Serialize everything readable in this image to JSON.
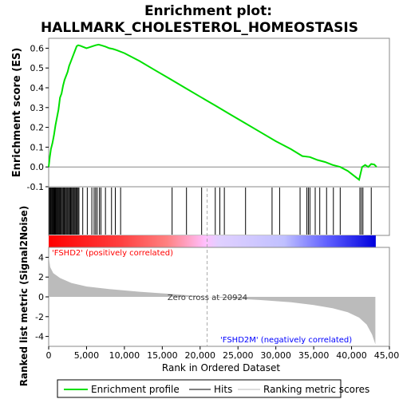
{
  "chart_data": {
    "type": "line",
    "title": "Enrichment plot:\nHALLMARK_CHOLESTEROL_HOMEOSTASIS",
    "title_lines": [
      "Enrichment plot:",
      "HALLMARK_CHOLESTEROL_HOMEOSTASIS"
    ],
    "es_panel": {
      "ylabel": "Enrichment score (ES)",
      "ylim": [
        -0.1,
        0.65
      ],
      "yticks": [
        -0.1,
        0.0,
        0.1,
        0.2,
        0.3,
        0.4,
        0.5,
        0.6
      ],
      "ytick_labels": [
        "-0.1",
        "0.0",
        "0.1",
        "0.2",
        "0.3",
        "0.4",
        "0.5",
        "0.6"
      ],
      "line_color": "#00e000",
      "points": [
        [
          0,
          0.0
        ],
        [
          150,
          0.05
        ],
        [
          300,
          0.09
        ],
        [
          500,
          0.12
        ],
        [
          700,
          0.16
        ],
        [
          900,
          0.21
        ],
        [
          1100,
          0.25
        ],
        [
          1300,
          0.29
        ],
        [
          1500,
          0.35
        ],
        [
          1700,
          0.37
        ],
        [
          1900,
          0.41
        ],
        [
          2100,
          0.44
        ],
        [
          2300,
          0.46
        ],
        [
          2500,
          0.48
        ],
        [
          2700,
          0.51
        ],
        [
          2900,
          0.53
        ],
        [
          3100,
          0.55
        ],
        [
          3300,
          0.57
        ],
        [
          3500,
          0.59
        ],
        [
          3700,
          0.61
        ],
        [
          3900,
          0.615
        ],
        [
          4200,
          0.612
        ],
        [
          4600,
          0.606
        ],
        [
          5000,
          0.6
        ],
        [
          5400,
          0.605
        ],
        [
          5800,
          0.61
        ],
        [
          6200,
          0.615
        ],
        [
          6600,
          0.618
        ],
        [
          7000,
          0.614
        ],
        [
          7500,
          0.608
        ],
        [
          8000,
          0.6
        ],
        [
          8500,
          0.596
        ],
        [
          9000,
          0.59
        ],
        [
          10000,
          0.575
        ],
        [
          12000,
          0.535
        ],
        [
          14000,
          0.49
        ],
        [
          16000,
          0.445
        ],
        [
          18000,
          0.4
        ],
        [
          20000,
          0.355
        ],
        [
          22000,
          0.31
        ],
        [
          24000,
          0.265
        ],
        [
          26000,
          0.22
        ],
        [
          28000,
          0.175
        ],
        [
          30000,
          0.13
        ],
        [
          32000,
          0.09
        ],
        [
          33500,
          0.055
        ],
        [
          34500,
          0.05
        ],
        [
          35500,
          0.035
        ],
        [
          36500,
          0.025
        ],
        [
          37500,
          0.01
        ],
        [
          38500,
          0.0
        ],
        [
          39500,
          -0.02
        ],
        [
          40500,
          -0.05
        ],
        [
          41000,
          -0.065
        ],
        [
          41400,
          0.0
        ],
        [
          41800,
          0.01
        ],
        [
          42200,
          0.0
        ],
        [
          42600,
          0.015
        ],
        [
          43000,
          0.012
        ],
        [
          43300,
          0.0
        ]
      ]
    },
    "hits": [
      80,
      180,
      260,
      350,
      450,
      540,
      640,
      740,
      840,
      940,
      1040,
      1150,
      1250,
      1360,
      1470,
      1580,
      1700,
      1820,
      1940,
      2060,
      2180,
      2300,
      2420,
      2540,
      2660,
      2780,
      2900,
      3020,
      3140,
      3260,
      3380,
      3500,
      3620,
      3750,
      3880,
      4000,
      4500,
      5100,
      5700,
      6000,
      6200,
      6400,
      6700,
      6900,
      7500,
      8300,
      8800,
      9500,
      16300,
      18200,
      20200,
      22000,
      22600,
      23200,
      26000,
      29500,
      30500,
      33200,
      34100,
      34300,
      34500,
      35200,
      35800,
      36700,
      37600,
      38500,
      41100,
      41300,
      41500,
      42600
    ],
    "gradient_bar": {
      "stops": [
        [
          0.0,
          "#ff0000"
        ],
        [
          0.22,
          "#ff4040"
        ],
        [
          0.36,
          "#ff8080"
        ],
        [
          0.48,
          "#ffc0ff"
        ],
        [
          0.52,
          "#e0d0ff"
        ],
        [
          0.72,
          "#c0c0ff"
        ],
        [
          0.85,
          "#6060ff"
        ],
        [
          1.0,
          "#0000dd"
        ]
      ]
    },
    "metric_panel": {
      "ylabel": "Ranked list metric (Signal2Noise)",
      "ylim": [
        -5,
        5
      ],
      "yticks": [
        -4,
        -2,
        0,
        2,
        4
      ],
      "ytick_labels": [
        "-4",
        "-2",
        "0",
        "2",
        "4"
      ],
      "fill_color": "#bbbbbb",
      "profile": [
        [
          0,
          4.1
        ],
        [
          200,
          3.0
        ],
        [
          600,
          2.4
        ],
        [
          1500,
          1.9
        ],
        [
          3000,
          1.4
        ],
        [
          5000,
          1.05
        ],
        [
          8000,
          0.78
        ],
        [
          12000,
          0.52
        ],
        [
          16000,
          0.3
        ],
        [
          19000,
          0.12
        ],
        [
          20924,
          0.0
        ],
        [
          24000,
          -0.15
        ],
        [
          28000,
          -0.32
        ],
        [
          32000,
          -0.55
        ],
        [
          35000,
          -0.82
        ],
        [
          37500,
          -1.15
        ],
        [
          39500,
          -1.55
        ],
        [
          41000,
          -2.1
        ],
        [
          42000,
          -2.8
        ],
        [
          42700,
          -3.8
        ],
        [
          43150,
          -4.8
        ]
      ],
      "zero_cross_label": "Zero cross at 20924",
      "zero_cross": 20924,
      "positive_label": "'FSHD2' (positively correlated)",
      "negative_label": "'FSHD2M' (negatively correlated)"
    },
    "xaxis": {
      "label": "Rank in Ordered Dataset",
      "xlim": [
        0,
        45000
      ],
      "xmax_data": 43200,
      "ticks": [
        0,
        5000,
        10000,
        15000,
        20000,
        25000,
        30000,
        35000,
        40000,
        45000
      ],
      "tick_labels": [
        "0",
        "5,000",
        "10,000",
        "15,000",
        "20,000",
        "25,000",
        "30,000",
        "35,000",
        "40,000",
        "45,000"
      ]
    },
    "legend": {
      "placement": "bottom",
      "entries": [
        {
          "label": "Enrichment profile",
          "color": "#00e000"
        },
        {
          "label": "Hits",
          "color": "#000000"
        },
        {
          "label": "Ranking metric scores",
          "color": "#bbbbbb"
        }
      ]
    }
  }
}
